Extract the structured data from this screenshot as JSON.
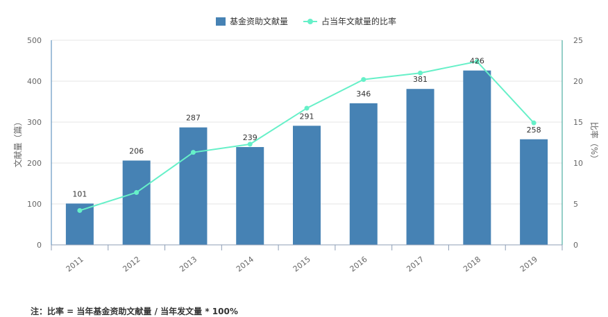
{
  "chart_data": {
    "type": "bar",
    "categories": [
      "2011",
      "2012",
      "2013",
      "2014",
      "2015",
      "2016",
      "2017",
      "2018",
      "2019"
    ],
    "series": [
      {
        "name": "基金资助文献量",
        "type": "bar",
        "axis": "left",
        "color": "#4682b4",
        "values": [
          101,
          206,
          287,
          239,
          291,
          346,
          381,
          426,
          258
        ]
      },
      {
        "name": "占当年文献量的比率",
        "type": "line",
        "axis": "right",
        "color": "#66f0c8",
        "values": [
          4.2,
          6.4,
          11.3,
          12.3,
          16.7,
          20.2,
          21.0,
          22.4,
          14.9
        ]
      }
    ],
    "ylabel": "文献量（篇）",
    "y2label": "比率（%）",
    "ylim": [
      0,
      500
    ],
    "y2lim": [
      0,
      25
    ],
    "yticks": [
      "0",
      "100",
      "200",
      "300",
      "400",
      "500"
    ],
    "y2ticks": [
      "0",
      "5",
      "10",
      "15",
      "20",
      "25"
    ],
    "legend_position": "top-center",
    "grid": true
  },
  "footnote": "注：比率 = 当年基金资助文献量 / 当年发文量 * 100%"
}
